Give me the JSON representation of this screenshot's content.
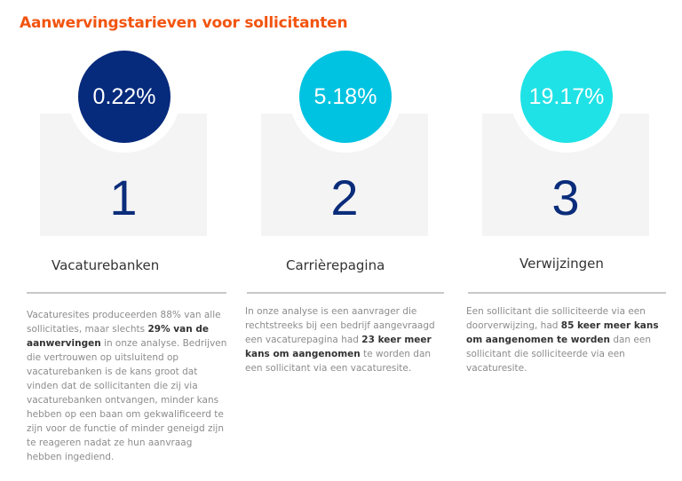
{
  "title": "Aanwervingstarieven voor sollicitanten",
  "colors": {
    "title": "#f2540f",
    "col1": "#062a7c",
    "col2": "#00c3e1",
    "col3": "#1fe2e6"
  },
  "columns": [
    {
      "percent": "0.22%",
      "number": "1",
      "heading": "Vacaturebanken",
      "text_before": "Vacaturesites produceerden 88% van alle sollicitaties, maar slechts ",
      "text_bold": "29% van de aanwervingen",
      "text_after": " in onze analyse. Bedrijven die vertrouwen op uitsluitend op vacaturebanken is de kans groot dat vinden dat de sollicitanten die zij via vacaturebanken ontvangen, minder kans hebben op een baan om gekwalificeerd te zijn voor de functie of minder geneigd zijn te reageren nadat ze hun aanvraag hebben ingediend."
    },
    {
      "percent": "5.18%",
      "number": "2",
      "heading": "Carrièrepagina",
      "text_before": "In onze analyse is een aanvrager die rechtstreeks bij een bedrijf aangevraagd een vacaturepagina had ",
      "text_bold": "23 keer meer kans om aangenomen",
      "text_after": " te worden dan een sollicitant via een vacaturesite."
    },
    {
      "percent": "19.17%",
      "number": "3",
      "heading": "Verwijzingen",
      "text_before": "Een sollicitant die solliciteerde via een doorverwijzing, had ",
      "text_bold": "85 keer meer kans om aangenomen te worden",
      "text_after": " dan een sollicitant die solliciteerde via een vacaturesite."
    }
  ]
}
